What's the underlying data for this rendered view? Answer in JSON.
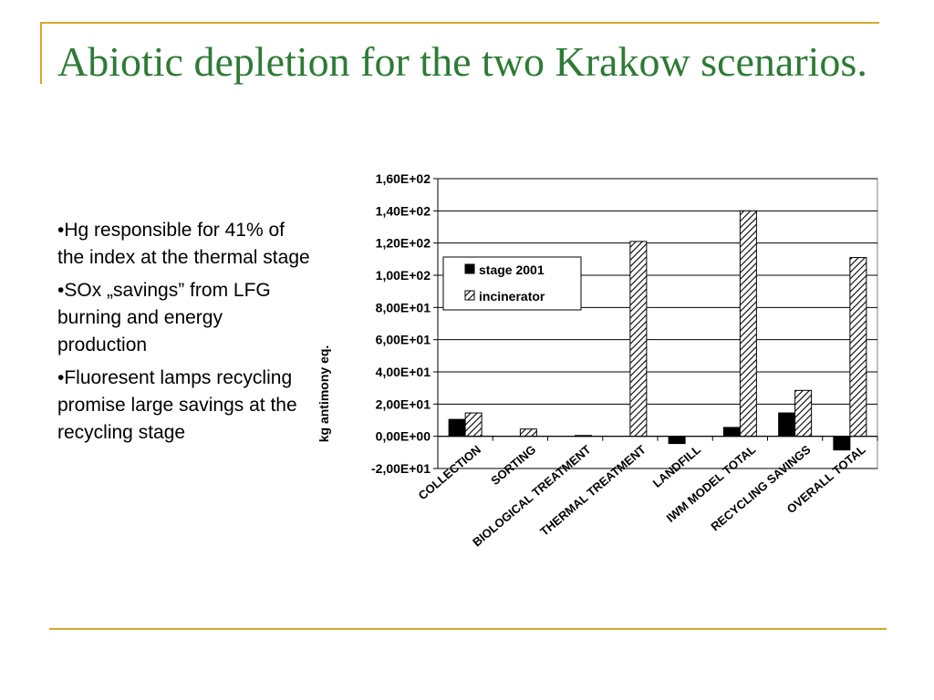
{
  "slide": {
    "title": "Abiotic depletion for the two Krakow scenarios.",
    "bullets": {
      "b1": "•Hg responsible for 41% of the index at the thermal stage",
      "b2_prefix": "•SO",
      "b2_sub": "x",
      "b2_rest": " „savings” from LFG burning and energy production",
      "b3": "•Fluoresent lamps recycling promise large savings at the recycling stage"
    }
  },
  "colors": {
    "title": "#2e7a36",
    "frame": "#d4a82a",
    "stage_bar": "#000000",
    "incinerator_hatch": "#000000"
  },
  "chart_data": {
    "type": "bar",
    "title": "",
    "xlabel": "",
    "ylabel": "kg antimony eq.",
    "ylim": [
      -20,
      160
    ],
    "yticks": [
      160,
      140,
      120,
      100,
      80,
      60,
      40,
      20,
      0,
      -20
    ],
    "ytick_labels": [
      "1,60E+02",
      "1,40E+02",
      "1,20E+02",
      "1,00E+02",
      "8,00E+01",
      "6,00E+01",
      "4,00E+01",
      "2,00E+01",
      "0,00E+00",
      "-2,00E+01"
    ],
    "grid": true,
    "legend_position": "upper-left",
    "categories": [
      "COLLECTION",
      "SORTING",
      "BIOLOGICAL TREATMENT",
      "THERMAL TREATMENT",
      "LANDFILL",
      "IWM MODEL TOTAL",
      "RECYCLING SAVINGS",
      "OVERALL TOTAL"
    ],
    "series": [
      {
        "name": "stage 2001",
        "pattern": "solid",
        "values": [
          10.5,
          0,
          0,
          0,
          -4.5,
          5.5,
          14.5,
          -8.5
        ]
      },
      {
        "name": "incinerator",
        "pattern": "hatched",
        "values": [
          14.5,
          4.5,
          0.5,
          121,
          0,
          140,
          28.5,
          111
        ]
      }
    ]
  }
}
